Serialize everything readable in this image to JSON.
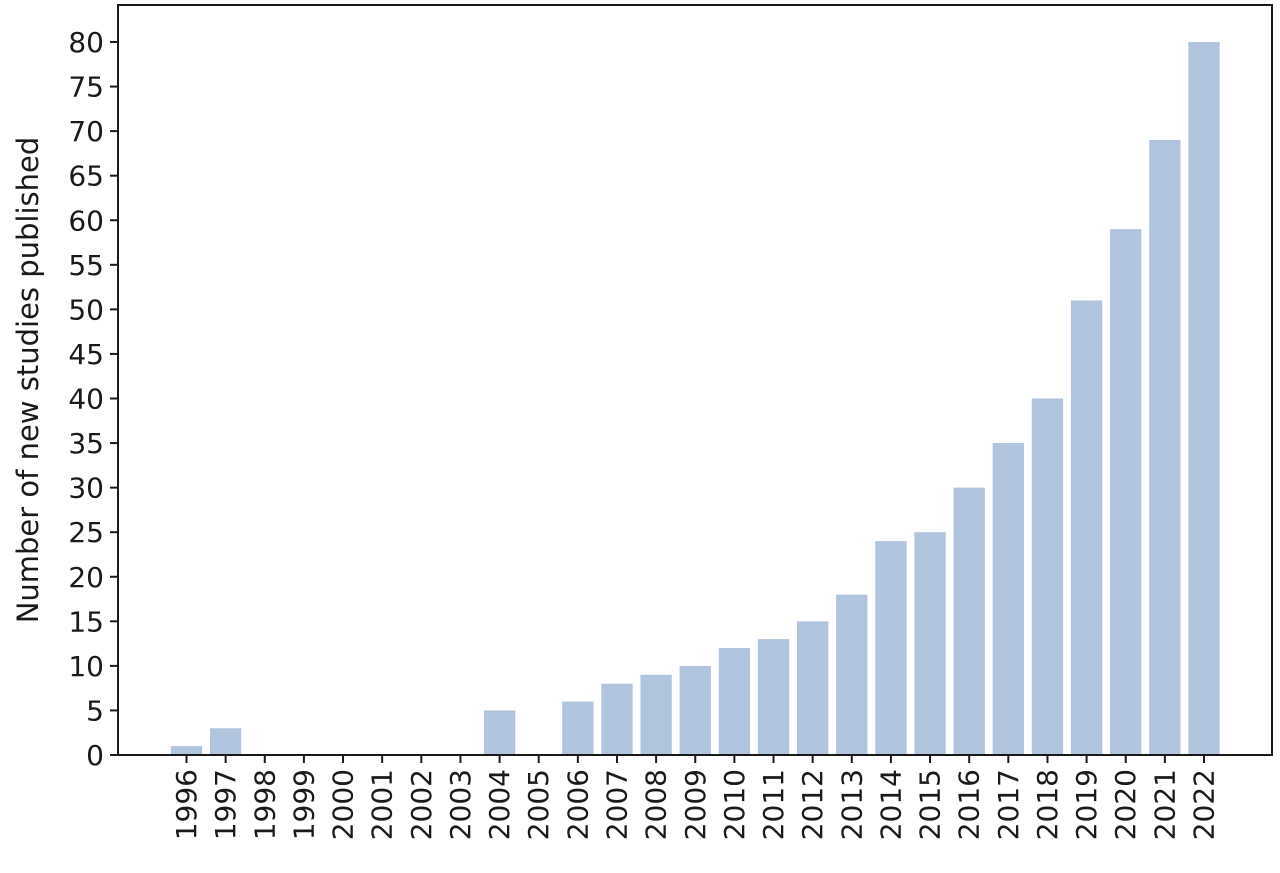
{
  "chart_data": {
    "type": "bar",
    "title": "",
    "xlabel": "",
    "ylabel": "Number of new studies published",
    "categories": [
      "1996",
      "1997",
      "1998",
      "1999",
      "2000",
      "2001",
      "2002",
      "2003",
      "2004",
      "2005",
      "2006",
      "2007",
      "2008",
      "2009",
      "2010",
      "2011",
      "2012",
      "2013",
      "2014",
      "2015",
      "2016",
      "2017",
      "2018",
      "2019",
      "2020",
      "2021",
      "2022"
    ],
    "values": [
      1,
      3,
      0,
      0,
      0,
      0,
      0,
      0,
      5,
      0,
      6,
      8,
      9,
      10,
      12,
      13,
      15,
      18,
      24,
      25,
      30,
      35,
      40,
      51,
      59,
      69,
      80
    ],
    "ylim": [
      0,
      80
    ],
    "yticks": [
      0,
      5,
      10,
      15,
      20,
      25,
      30,
      35,
      40,
      45,
      50,
      55,
      60,
      65,
      70,
      75,
      80
    ],
    "grid": false,
    "colors": {
      "bar": "#b0c4de",
      "axis": "#1a1a1a"
    }
  }
}
